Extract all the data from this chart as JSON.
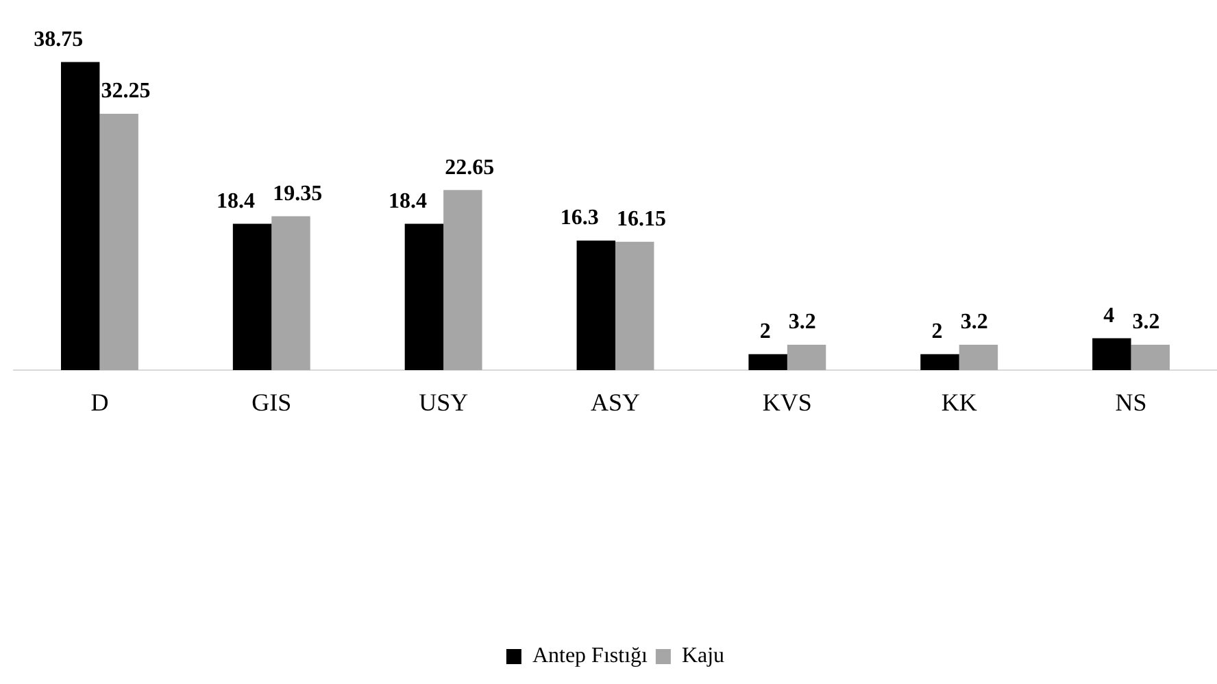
{
  "chart_data": {
    "type": "bar",
    "categories": [
      "D",
      "GIS",
      "USY",
      "ASY",
      "KVS",
      "KK",
      "NS"
    ],
    "series": [
      {
        "name": "Antep Fıstığı",
        "color": "#000000",
        "values": [
          38.75,
          18.4,
          18.4,
          16.3,
          2,
          2,
          4
        ]
      },
      {
        "name": "Kaju",
        "color": "#a6a6a6",
        "values": [
          32.25,
          19.35,
          22.65,
          16.15,
          3.2,
          3.2,
          3.2
        ]
      }
    ],
    "data_labels": true,
    "grid": false,
    "legend": "bottom",
    "tick_labels": "x"
  }
}
